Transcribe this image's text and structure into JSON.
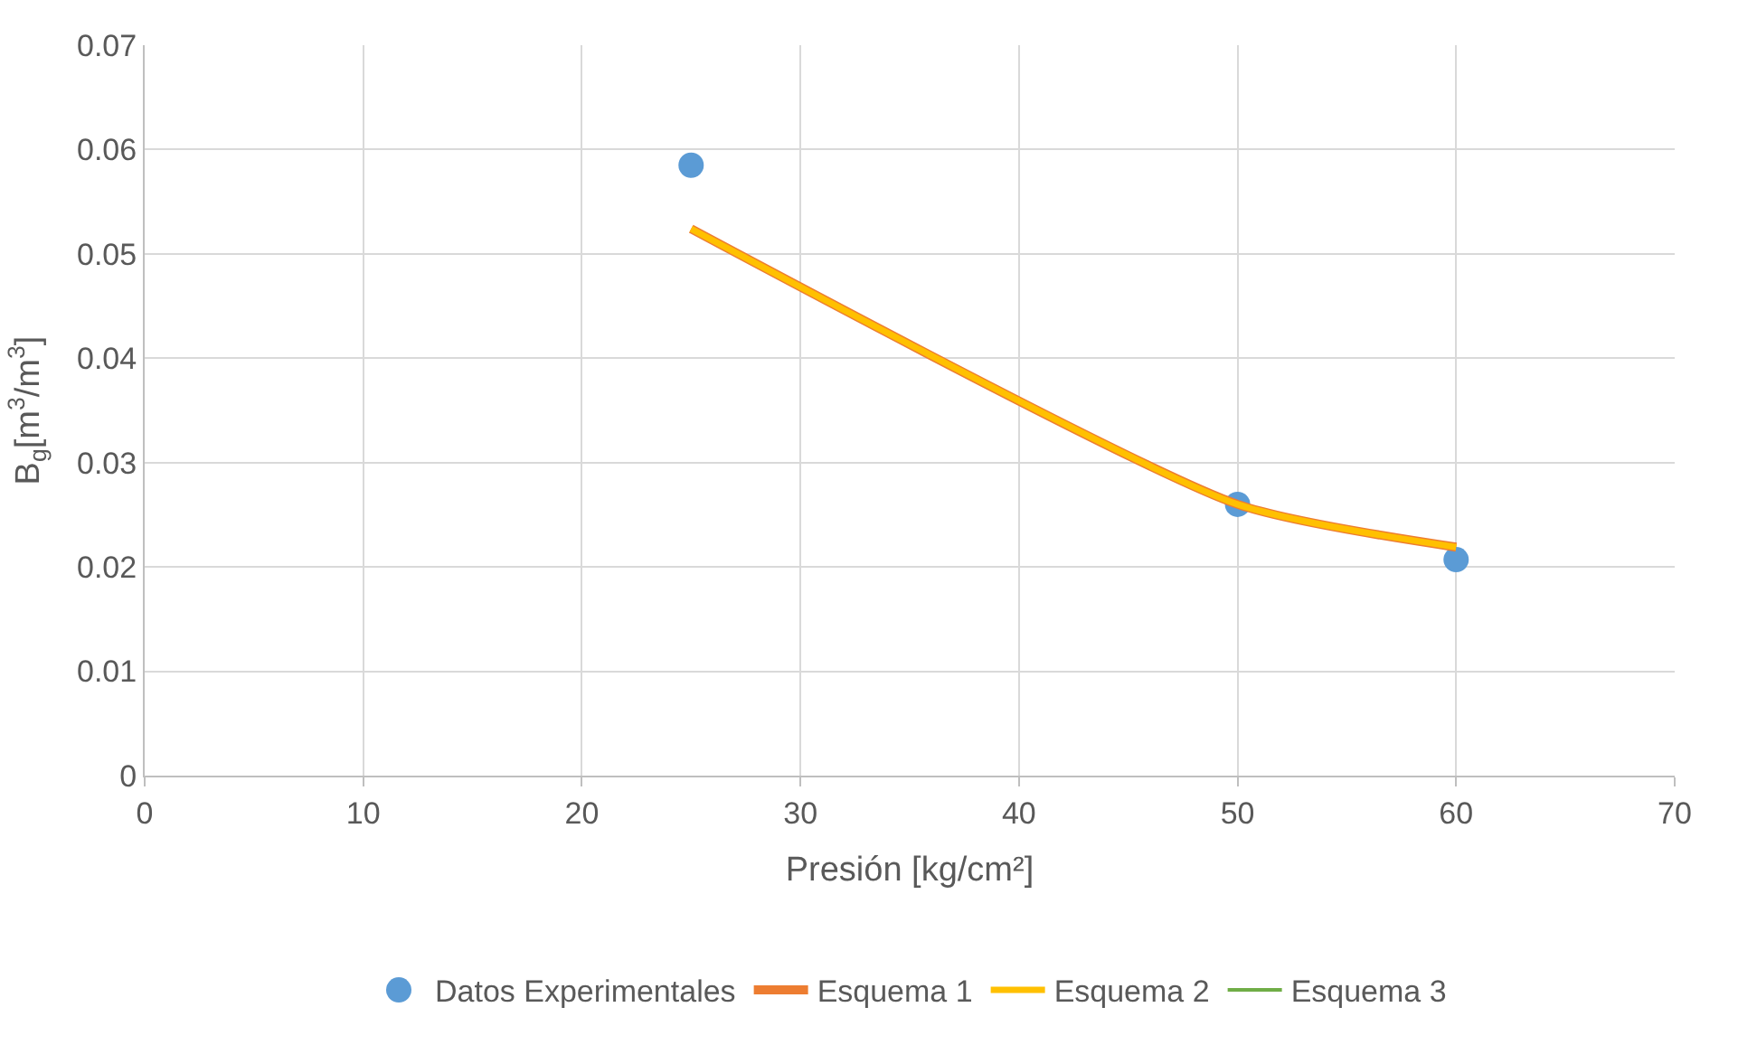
{
  "chart_data": {
    "type": "scatter",
    "xlabel": "Presión [kg/cm²]",
    "ylabel": "B$_{g}$[m$^{3}$/m$^{3}$]",
    "xlim": [
      0,
      70
    ],
    "xticks": [
      0,
      10,
      20,
      30,
      40,
      50,
      60,
      70
    ],
    "ylim": [
      0,
      0.07
    ],
    "yticks": [
      0,
      0.01,
      0.02,
      0.03,
      0.04,
      0.05,
      0.06,
      0.07
    ],
    "grid": true,
    "legend": "bottom",
    "series": [
      {
        "name": "Datos Experimentales",
        "marker": "circle",
        "color": "#5b9bd5",
        "x": [
          25,
          50,
          60
        ],
        "values": [
          0.0585,
          0.026,
          0.0207
        ]
      },
      {
        "name": "Esquema 1",
        "type": "line",
        "marker": "none",
        "color": "#ed7d31",
        "x": [
          25,
          50,
          60
        ],
        "values": [
          0.0524,
          0.026,
          0.0219
        ]
      },
      {
        "name": "Esquema 2",
        "type": "line",
        "marker": "none",
        "color": "#ffc000",
        "x": [
          25,
          50,
          60
        ],
        "values": [
          0.0524,
          0.026,
          0.0219
        ]
      },
      {
        "name": "Esquema 3",
        "type": "line",
        "marker": "none",
        "color": "#70ad47",
        "values": [
          null,
          null,
          null
        ]
      }
    ]
  }
}
